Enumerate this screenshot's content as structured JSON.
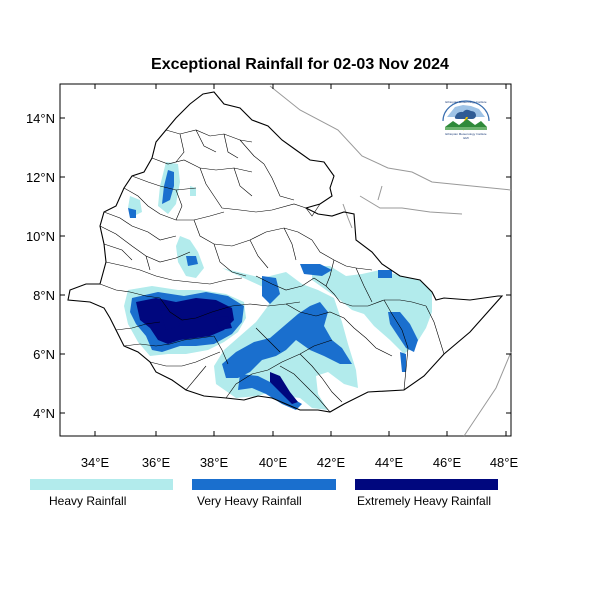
{
  "title": "Exceptional Rainfall for 02-03 Nov 2024",
  "map": {
    "lon_range": [
      32.8,
      48.2
    ],
    "lat_range": [
      3.0,
      15.0
    ],
    "lon_ticks": [
      "34°E",
      "36°E",
      "38°E",
      "40°E",
      "42°E",
      "44°E",
      "46°E",
      "48°E"
    ],
    "lat_ticks": [
      "4°N",
      "6°N",
      "8°N",
      "10°N",
      "12°N",
      "14°N"
    ]
  },
  "legend": {
    "items": [
      {
        "label": "Heavy Rainfall",
        "color": "#b2ebec"
      },
      {
        "label": "Very Heavy Rainfall",
        "color": "#1a6fce"
      },
      {
        "label": "Extremely Heavy Rainfall",
        "color": "#00077e"
      }
    ]
  },
  "colors": {
    "heavy": "#b2ebec",
    "very_heavy": "#1a6fce",
    "extreme": "#00077e",
    "border": "#000000",
    "neighbor_border": "#999999"
  },
  "logo": {
    "icon": "meteorology-institute-logo",
    "text_top": "Ethiopian Meteorology Institute",
    "text_bottom": "Ethiopian Meteorology Institute",
    "text_year": "EMI"
  }
}
